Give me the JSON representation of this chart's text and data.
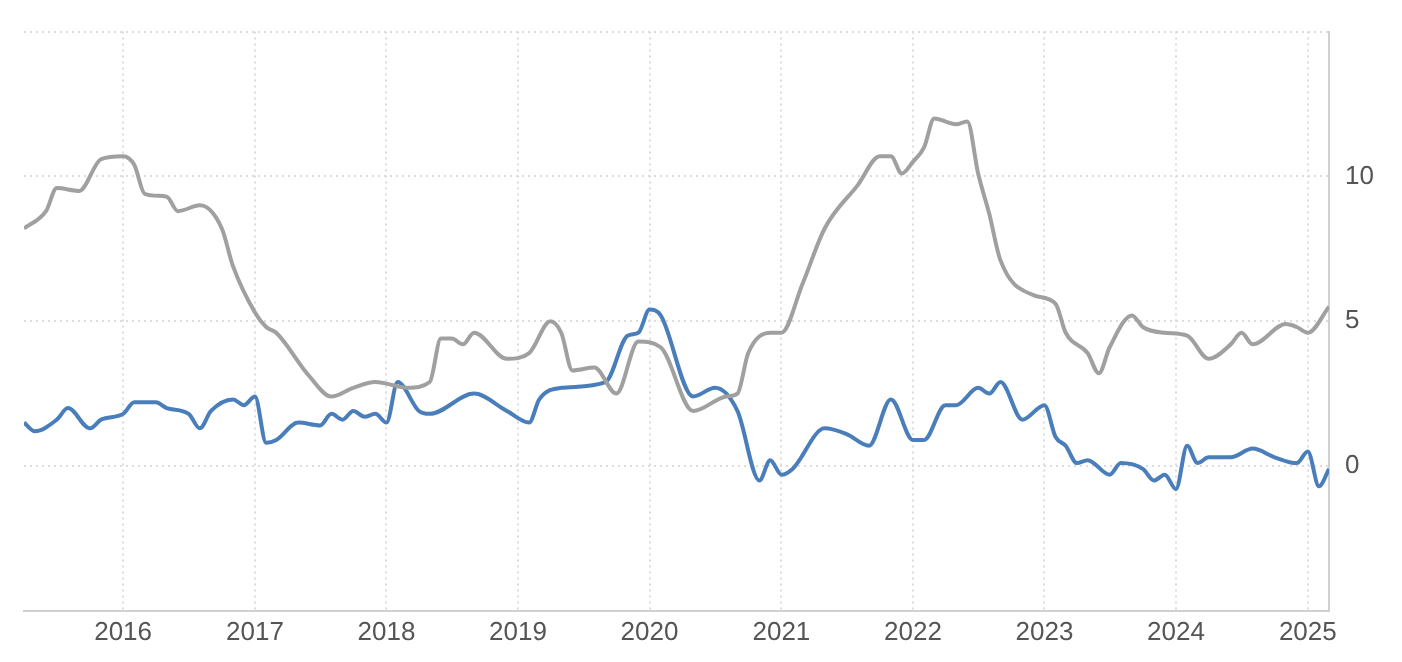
{
  "chart_data": {
    "type": "line",
    "xlim": [
      "2015-04",
      "2025-03"
    ],
    "xticks": [
      "2016",
      "2017",
      "2018",
      "2019",
      "2020",
      "2021",
      "2022",
      "2023",
      "2024",
      "2025"
    ],
    "ylim": [
      -5,
      15
    ],
    "yticks": [
      {
        "value": -5,
        "label": null
      },
      0,
      5,
      10,
      {
        "value": 15,
        "label": null
      }
    ],
    "grid": true,
    "series": [
      {
        "color": "#a0a0a0",
        "x": [
          "2015-04",
          "2015-06",
          "2015-07",
          "2015-09",
          "2015-11",
          "2016-01",
          "2016-02",
          "2016-03",
          "2016-05",
          "2016-06",
          "2016-08",
          "2016-10",
          "2016-11",
          "2017-01",
          "2017-02",
          "2017-03",
          "2017-06",
          "2017-08",
          "2017-10",
          "2017-12",
          "2018-03",
          "2018-05",
          "2018-06",
          "2018-07",
          "2018-08",
          "2018-09",
          "2018-12",
          "2019-02",
          "2019-04",
          "2019-05",
          "2019-06",
          "2019-08",
          "2019-10",
          "2019-12",
          "2020-02",
          "2020-05",
          "2020-08",
          "2020-09",
          "2020-10",
          "2020-12",
          "2021-01",
          "2021-03",
          "2021-05",
          "2021-08",
          "2021-10",
          "2021-11",
          "2021-12",
          "2022-01",
          "2022-02",
          "2022-03",
          "2022-05",
          "2022-06",
          "2022-07",
          "2022-08",
          "2022-09",
          "2022-12",
          "2023-02",
          "2023-03",
          "2023-05",
          "2023-06",
          "2023-07",
          "2023-09",
          "2023-10",
          "2023-12",
          "2024-02",
          "2024-04",
          "2024-06",
          "2024-07",
          "2024-08",
          "2024-11",
          "2024-12",
          "2025-01",
          "2025-03"
        ],
        "values": [
          8.2,
          8.8,
          9.6,
          9.5,
          10.6,
          10.7,
          10.4,
          9.4,
          9.3,
          8.8,
          9.0,
          8.2,
          6.9,
          5.3,
          4.8,
          4.6,
          3.1,
          2.4,
          2.7,
          2.9,
          2.7,
          2.9,
          4.4,
          4.4,
          4.2,
          4.6,
          3.7,
          3.9,
          5.0,
          4.6,
          3.3,
          3.4,
          2.5,
          4.3,
          4.1,
          1.9,
          2.4,
          2.5,
          3.9,
          4.6,
          4.6,
          6.3,
          8.2,
          9.7,
          10.7,
          10.7,
          10.1,
          10.5,
          11.0,
          12.0,
          11.8,
          11.9,
          10.1,
          8.7,
          7.1,
          5.9,
          5.6,
          4.6,
          3.9,
          3.2,
          4.1,
          5.2,
          4.8,
          4.6,
          4.5,
          3.7,
          4.2,
          4.6,
          4.2,
          4.9,
          4.8,
          4.6,
          5.5
        ]
      },
      {
        "color": "#4a7ebb",
        "x": [
          "2015-04",
          "2015-05",
          "2015-07",
          "2015-08",
          "2015-10",
          "2015-11",
          "2016-01",
          "2016-02",
          "2016-04",
          "2016-05",
          "2016-07",
          "2016-08",
          "2016-09",
          "2016-11",
          "2016-12",
          "2017-01",
          "2017-02",
          "2017-03",
          "2017-05",
          "2017-07",
          "2017-08",
          "2017-09",
          "2017-10",
          "2017-11",
          "2017-12",
          "2018-01",
          "2018-02",
          "2018-04",
          "2018-05",
          "2018-09",
          "2018-12",
          "2019-02",
          "2019-03",
          "2019-05",
          "2019-09",
          "2019-11",
          "2019-12",
          "2020-01",
          "2020-02",
          "2020-05",
          "2020-07",
          "2020-09",
          "2020-11",
          "2020-12",
          "2021-01",
          "2021-02",
          "2021-05",
          "2021-07",
          "2021-09",
          "2021-11",
          "2022-01",
          "2022-02",
          "2022-04",
          "2022-05",
          "2022-07",
          "2022-08",
          "2022-09",
          "2022-11",
          "2023-01",
          "2023-02",
          "2023-03",
          "2023-04",
          "2023-05",
          "2023-07",
          "2023-08",
          "2023-10",
          "2023-11",
          "2023-12",
          "2024-01",
          "2024-02",
          "2024-03",
          "2024-04",
          "2024-06",
          "2024-08",
          "2024-10",
          "2024-12",
          "2025-01",
          "2025-02",
          "2025-03"
        ],
        "values": [
          1.5,
          1.2,
          1.6,
          2.0,
          1.3,
          1.6,
          1.8,
          2.2,
          2.2,
          2.0,
          1.8,
          1.3,
          1.9,
          2.3,
          2.1,
          2.4,
          0.8,
          0.9,
          1.5,
          1.4,
          1.8,
          1.6,
          1.9,
          1.7,
          1.8,
          1.5,
          2.9,
          1.9,
          1.8,
          2.5,
          1.9,
          1.5,
          2.3,
          2.7,
          2.9,
          4.5,
          4.6,
          5.4,
          5.2,
          2.4,
          2.7,
          1.9,
          -0.5,
          0.2,
          -0.3,
          -0.1,
          1.3,
          1.1,
          0.7,
          2.3,
          0.9,
          0.9,
          2.1,
          2.1,
          2.7,
          2.5,
          2.9,
          1.6,
          2.1,
          1.0,
          0.7,
          0.1,
          0.2,
          -0.3,
          0.1,
          -0.1,
          -0.5,
          -0.3,
          -0.8,
          0.7,
          0.1,
          0.3,
          0.3,
          0.6,
          0.3,
          0.1,
          0.5,
          -0.7,
          -0.1
        ]
      }
    ]
  }
}
